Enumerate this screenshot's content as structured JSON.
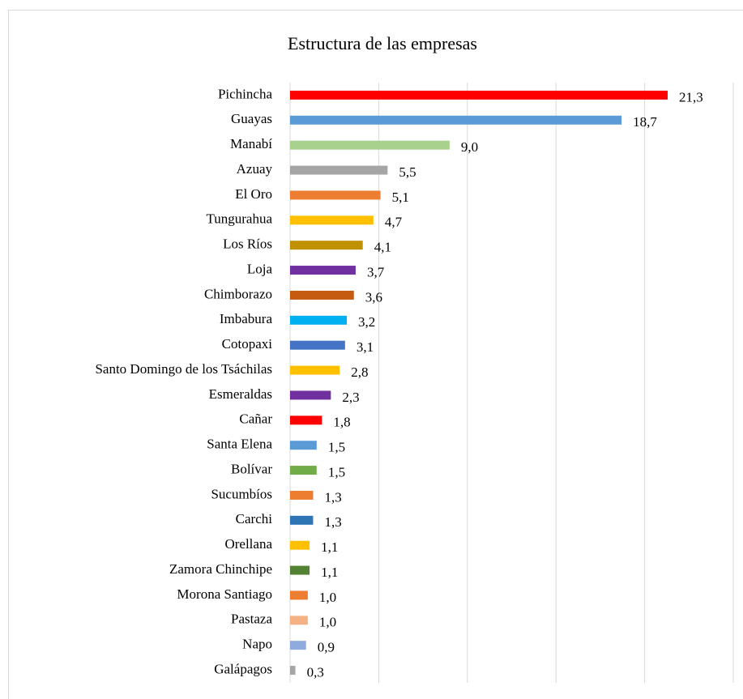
{
  "chart_data": {
    "type": "barh",
    "title": "Estructura de las empresas",
    "categories": [
      "Pichincha",
      "Guayas",
      "Manabí",
      "Azuay",
      "El Oro",
      "Tungurahua",
      "Los Ríos",
      "Loja",
      "Chimborazo",
      "Imbabura",
      "Cotopaxi",
      "Santo Domingo de los Tsáchilas",
      "Esmeraldas",
      "Cañar",
      "Santa Elena",
      "Bolívar",
      "Sucumbíos",
      "Carchi",
      "Orellana",
      "Zamora Chinchipe",
      "Morona Santiago",
      "Pastaza",
      "Napo",
      "Galápagos"
    ],
    "values": [
      21.3,
      18.7,
      9.0,
      5.5,
      5.1,
      4.7,
      4.1,
      3.7,
      3.6,
      3.2,
      3.1,
      2.8,
      2.3,
      1.8,
      1.5,
      1.5,
      1.3,
      1.3,
      1.1,
      1.1,
      1.0,
      1.0,
      0.9,
      0.3
    ],
    "value_labels": [
      "21,3",
      "18,7",
      "9,0",
      "5,5",
      "5,1",
      "4,7",
      "4,1",
      "3,7",
      "3,6",
      "3,2",
      "3,1",
      "2,8",
      "2,3",
      "1,8",
      "1,5",
      "1,5",
      "1,3",
      "1,3",
      "1,1",
      "1,1",
      "1,0",
      "1,0",
      "0,9",
      "0,3"
    ],
    "colors": [
      "#ff0000",
      "#5b9bd5",
      "#a9d18e",
      "#a5a5a5",
      "#ed7d31",
      "#ffc000",
      "#bf9000",
      "#7030a0",
      "#c55a11",
      "#00b0f0",
      "#4472c4",
      "#ffc000",
      "#7030a0",
      "#ff0000",
      "#5b9bd5",
      "#70ad47",
      "#ed7d31",
      "#2e75b6",
      "#ffc000",
      "#548235",
      "#ed7d31",
      "#f4b183",
      "#8faadc",
      "#a5a5a5"
    ],
    "xlim": [
      0,
      25
    ],
    "xticks": [
      0,
      5,
      10,
      15,
      20,
      25
    ],
    "grid": true
  }
}
